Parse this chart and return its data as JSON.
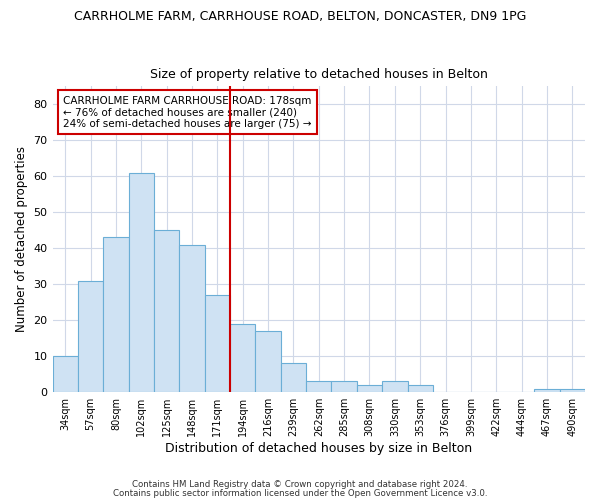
{
  "title1": "CARRHOLME FARM, CARRHOUSE ROAD, BELTON, DONCASTER, DN9 1PG",
  "title2": "Size of property relative to detached houses in Belton",
  "xlabel": "Distribution of detached houses by size in Belton",
  "ylabel": "Number of detached properties",
  "bin_labels": [
    "34sqm",
    "57sqm",
    "80sqm",
    "102sqm",
    "125sqm",
    "148sqm",
    "171sqm",
    "194sqm",
    "216sqm",
    "239sqm",
    "262sqm",
    "285sqm",
    "308sqm",
    "330sqm",
    "353sqm",
    "376sqm",
    "399sqm",
    "422sqm",
    "444sqm",
    "467sqm",
    "490sqm"
  ],
  "bar_heights": [
    10,
    31,
    43,
    61,
    45,
    41,
    27,
    19,
    17,
    8,
    3,
    3,
    2,
    3,
    2,
    0,
    0,
    0,
    0,
    1,
    1
  ],
  "bar_color": "#cfe2f3",
  "bar_edge_color": "#6baed6",
  "ref_line_color": "#cc0000",
  "ylim": [
    0,
    85
  ],
  "yticks": [
    0,
    10,
    20,
    30,
    40,
    50,
    60,
    70,
    80
  ],
  "annotation_line1": "CARRHOLME FARM CARRHOUSE ROAD: 178sqm",
  "annotation_line2": "← 76% of detached houses are smaller (240)",
  "annotation_line3": "24% of semi-detached houses are larger (75) →",
  "annotation_box_color": "#ffffff",
  "annotation_box_edge_color": "#cc0000",
  "footer1": "Contains HM Land Registry data © Crown copyright and database right 2024.",
  "footer2": "Contains public sector information licensed under the Open Government Licence v3.0.",
  "background_color": "#ffffff",
  "grid_color": "#d0d8e8",
  "ref_bar_index": 6
}
